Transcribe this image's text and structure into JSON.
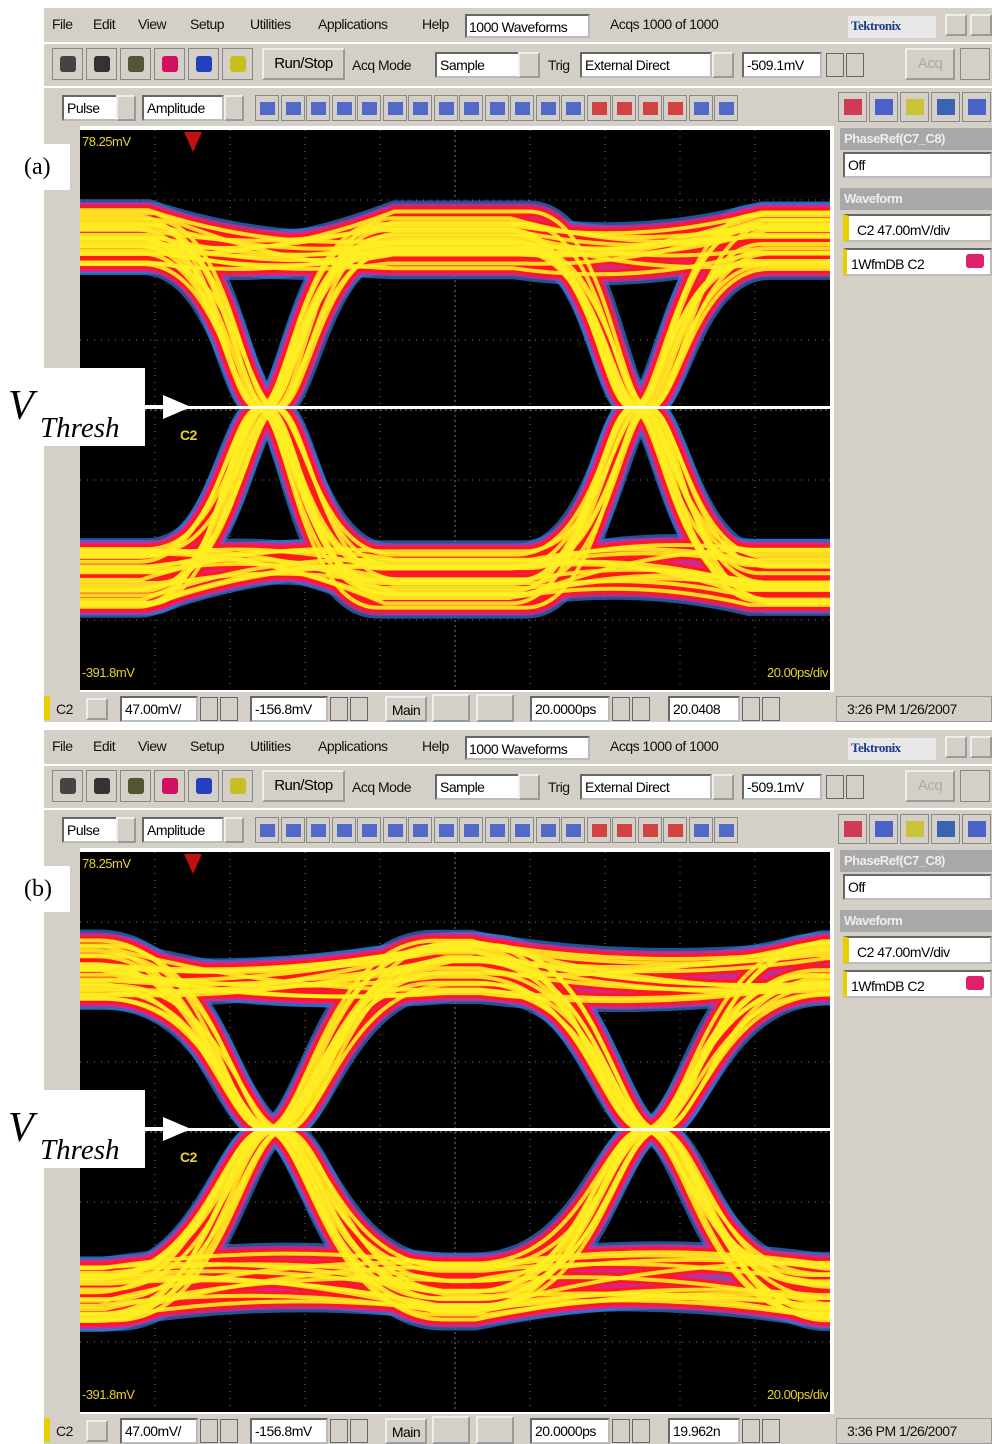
{
  "panels": [
    {
      "label": "(a)",
      "menu": [
        "File",
        "Edit",
        "View",
        "Setup",
        "Utilities",
        "Applications",
        "Help"
      ],
      "waveforms": "1000 Waveforms",
      "acqs": "Acqs 1000 of 1000",
      "brand": "Tektronix",
      "toolbar": {
        "run_stop": "Run/Stop",
        "acq_mode_label": "Acq Mode",
        "acq_mode": "Sample",
        "trig_label": "Trig",
        "trig": "External Direct",
        "trig_level": "-509.1mV",
        "acq": "Acq"
      },
      "measure": {
        "type": "Pulse",
        "measure": "Amplitude"
      },
      "plot": {
        "top": "78.25mV",
        "bottom": "-391.8mV",
        "timebase": "20.00ps/div",
        "channel": "C2",
        "threshold_v": "V",
        "threshold_sub": "Thresh"
      },
      "side": {
        "phase_ref": "PhaseRef(C7_C8)",
        "phase_ref_value": "Off",
        "waveform_header": "Waveform",
        "channel_scale": "C2 47.00mV/div",
        "wfmdb": "1WfmDB C2"
      },
      "status": {
        "channel": "C2",
        "scale": "47.00mV/",
        "offset": "-156.8mV",
        "main": "Main",
        "horizontal": "20.0000ps",
        "position": "20.0408",
        "time": "3:26 PM 1/26/2007"
      }
    },
    {
      "label": "(b)",
      "menu": [
        "File",
        "Edit",
        "View",
        "Setup",
        "Utilities",
        "Applications",
        "Help"
      ],
      "waveforms": "1000 Waveforms",
      "acqs": "Acqs 1000 of 1000",
      "brand": "Tektronix",
      "toolbar": {
        "run_stop": "Run/Stop",
        "acq_mode_label": "Acq Mode",
        "acq_mode": "Sample",
        "trig_label": "Trig",
        "trig": "External Direct",
        "trig_level": "-509.1mV",
        "acq": "Acq"
      },
      "measure": {
        "type": "Pulse",
        "measure": "Amplitude"
      },
      "plot": {
        "top": "78.25mV",
        "bottom": "-391.8mV",
        "timebase": "20.00ps/div",
        "channel": "C2",
        "threshold_v": "V",
        "threshold_sub": "Thresh"
      },
      "side": {
        "phase_ref": "PhaseRef(C7_C8)",
        "phase_ref_value": "Off",
        "waveform_header": "Waveform",
        "channel_scale": "C2 47.00mV/div",
        "wfmdb": "1WfmDB C2"
      },
      "status": {
        "channel": "C2",
        "scale": "47.00mV/",
        "offset": "-156.8mV",
        "main": "Main",
        "horizontal": "20.0000ps",
        "position": "19.962n",
        "time": "3:36 PM 1/26/2007"
      }
    }
  ]
}
